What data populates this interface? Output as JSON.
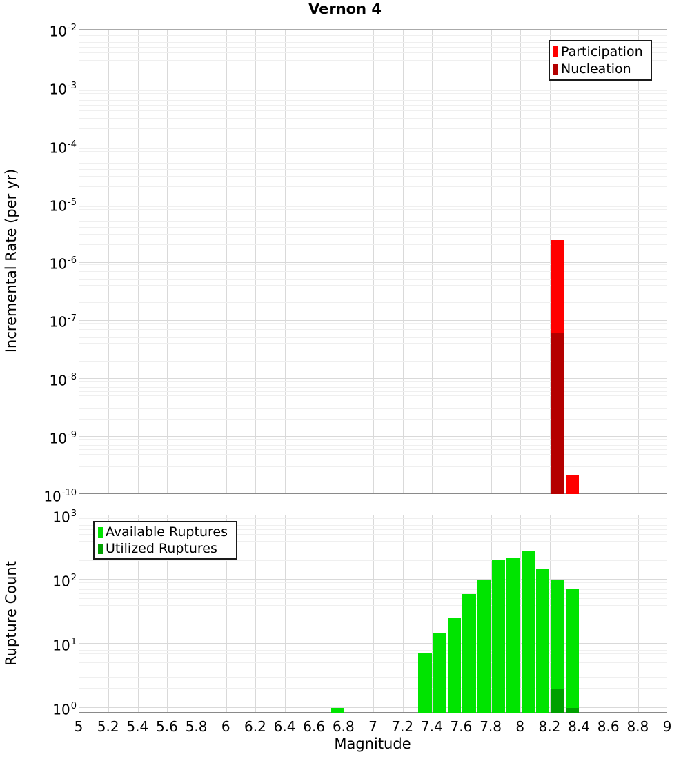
{
  "title": "Vernon 4",
  "x_axis": {
    "label": "Magnitude",
    "min": 5,
    "max": 9,
    "ticks": [
      {
        "v": 5,
        "label": "5"
      },
      {
        "v": 5.2,
        "label": "5.2"
      },
      {
        "v": 5.4,
        "label": "5.4"
      },
      {
        "v": 5.6,
        "label": "5.6"
      },
      {
        "v": 5.8,
        "label": "5.8"
      },
      {
        "v": 6,
        "label": "6"
      },
      {
        "v": 6.2,
        "label": "6.2"
      },
      {
        "v": 6.4,
        "label": "6.4"
      },
      {
        "v": 6.6,
        "label": "6.6"
      },
      {
        "v": 6.8,
        "label": "6.8"
      },
      {
        "v": 7,
        "label": "7"
      },
      {
        "v": 7.2,
        "label": "7.2"
      },
      {
        "v": 7.4,
        "label": "7.4"
      },
      {
        "v": 7.6,
        "label": "7.6"
      },
      {
        "v": 7.8,
        "label": "7.8"
      },
      {
        "v": 8,
        "label": "8"
      },
      {
        "v": 8.2,
        "label": "8.2"
      },
      {
        "v": 8.4,
        "label": "8.4"
      },
      {
        "v": 8.6,
        "label": "8.6"
      },
      {
        "v": 8.8,
        "label": "8.8"
      },
      {
        "v": 9,
        "label": "9"
      }
    ]
  },
  "chart_data": [
    {
      "type": "bar",
      "panel": "top",
      "ylabel": "Incremental Rate (per yr)",
      "ylim": [
        1e-10,
        0.01
      ],
      "yscale": "log",
      "grid": true,
      "ytick_exponents": [
        "-2",
        "-3",
        "-4",
        "-5",
        "-6",
        "-7",
        "-8",
        "-9",
        "-10"
      ],
      "bar_width": 0.1,
      "legend_position": "top-right",
      "series": [
        {
          "name": "Participation",
          "color": "#ff0000",
          "points": [
            {
              "x": 8.25,
              "y": 2.4e-06
            },
            {
              "x": 8.35,
              "y": 2.2e-10
            }
          ]
        },
        {
          "name": "Nucleation",
          "color": "#b40000",
          "points": [
            {
              "x": 8.25,
              "y": 6e-08
            }
          ]
        }
      ]
    },
    {
      "type": "bar",
      "panel": "bottom",
      "ylabel": "Rupture Count",
      "ylim": [
        0.8,
        1000
      ],
      "yscale": "log",
      "grid": true,
      "ytick_exponents": [
        "3",
        "2",
        "1",
        "0"
      ],
      "bar_width": 0.1,
      "legend_position": "top-left",
      "series": [
        {
          "name": "Available Ruptures",
          "color": "#00e400",
          "points": [
            {
              "x": 6.75,
              "y": 1
            },
            {
              "x": 7.35,
              "y": 7
            },
            {
              "x": 7.45,
              "y": 15
            },
            {
              "x": 7.55,
              "y": 25
            },
            {
              "x": 7.65,
              "y": 60
            },
            {
              "x": 7.75,
              "y": 100
            },
            {
              "x": 7.85,
              "y": 200
            },
            {
              "x": 7.95,
              "y": 220
            },
            {
              "x": 8.05,
              "y": 275
            },
            {
              "x": 8.15,
              "y": 150
            },
            {
              "x": 8.25,
              "y": 100
            },
            {
              "x": 8.35,
              "y": 70
            }
          ]
        },
        {
          "name": "Utilized Ruptures",
          "color": "#00a000",
          "points": [
            {
              "x": 8.25,
              "y": 2
            },
            {
              "x": 8.35,
              "y": 1
            }
          ]
        }
      ]
    }
  ]
}
